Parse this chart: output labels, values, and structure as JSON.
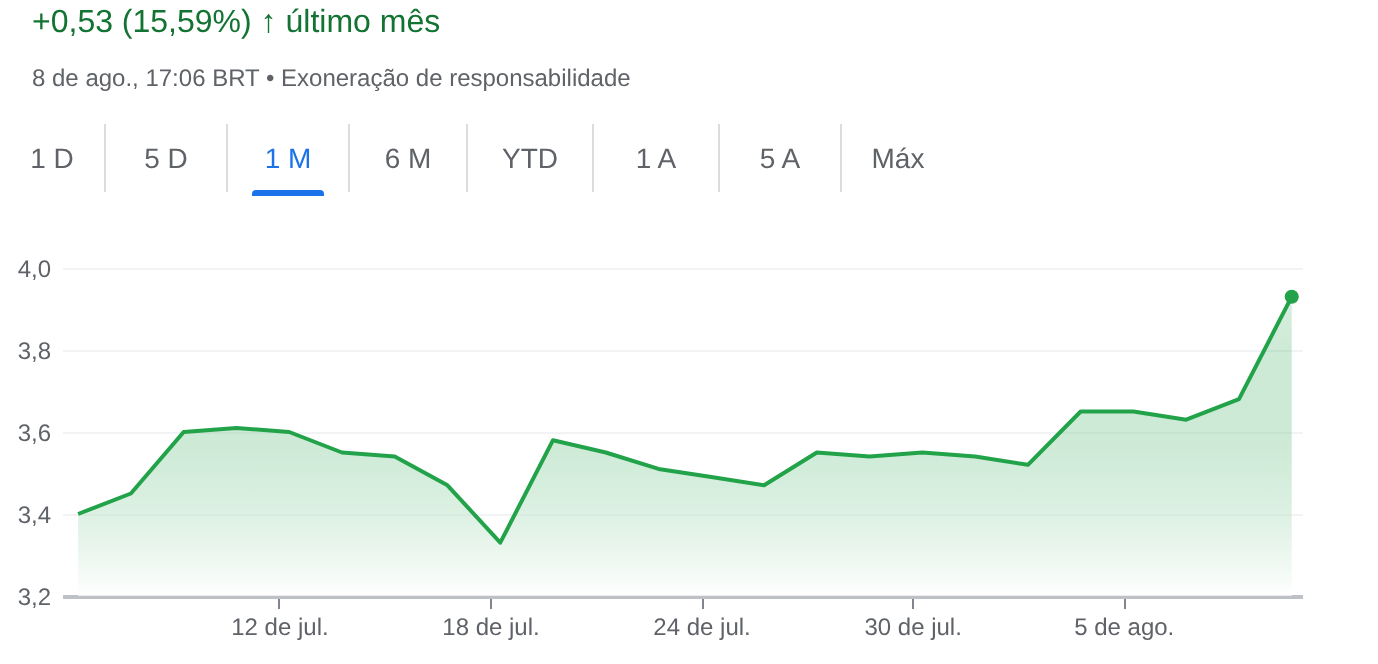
{
  "chart_data": {
    "type": "area",
    "title": "+0,53 (15,59%) ↑ último mês",
    "subtitle": "8 de ago., 17:06 BRT • Exoneração de responsabilidade",
    "annotations": [
      "1 D",
      "5 D",
      "1 M",
      "6 M",
      "YTD",
      "1 A",
      "5 A",
      "Máx"
    ],
    "x": [
      "--07-06T07:00",
      "--07-07T19:00",
      "--07-09T07:00",
      "--07-10T19:00",
      "--07-12T07:00",
      "--07-13T19:00",
      "--07-15T07:00",
      "--07-16T19:00",
      "--07-18T07:00",
      "--07-19T19:00",
      "--07-21T07:00",
      "--07-22T19:00",
      "--07-24T07:00",
      "--07-25T19:00",
      "--07-27T07:00",
      "--07-28T19:00",
      "--07-30T07:00",
      "--07-31T19:00",
      "--08-02T07:00",
      "--08-03T19:00",
      "--08-05T07:00",
      "--08-06T19:00",
      "--08-08T07:00",
      "--08-09T19:00"
    ],
    "series": [
      {
        "color": "#22a34a",
        "values": [
          3.4,
          3.45,
          3.6,
          3.61,
          3.6,
          3.55,
          3.54,
          3.47,
          3.33,
          3.58,
          3.55,
          3.51,
          3.49,
          3.47,
          3.55,
          3.54,
          3.55,
          3.54,
          3.52,
          3.65,
          3.65,
          3.63,
          3.68,
          3.93
        ]
      },
      {
        "type": "scatter",
        "marker": "circle",
        "color": "#22a34a",
        "x": [
          "--08-09T19:00"
        ],
        "values": [
          3.93
        ]
      }
    ],
    "xlim": [
      "--07-05T20:00",
      "--08-10T02:00"
    ],
    "xticks": [
      {
        "value": "--07-12",
        "label": "12 de jul."
      },
      {
        "value": "--07-18",
        "label": "18 de jul."
      },
      {
        "value": "--07-24",
        "label": "24 de jul."
      },
      {
        "value": "--07-30",
        "label": "30 de jul."
      },
      {
        "value": "--08-05",
        "label": "5 de ago."
      }
    ],
    "ylim": [
      3.2,
      4.0
    ],
    "yticks": [
      {
        "value": 3.2,
        "label": "3,2"
      },
      {
        "value": 3.4,
        "label": "3,4"
      },
      {
        "value": 3.6,
        "label": "3,6"
      },
      {
        "value": 3.8,
        "label": "3,8"
      },
      {
        "value": 4.0,
        "label": "4,0"
      }
    ],
    "grid": "y",
    "line_style": "solid"
  }
}
